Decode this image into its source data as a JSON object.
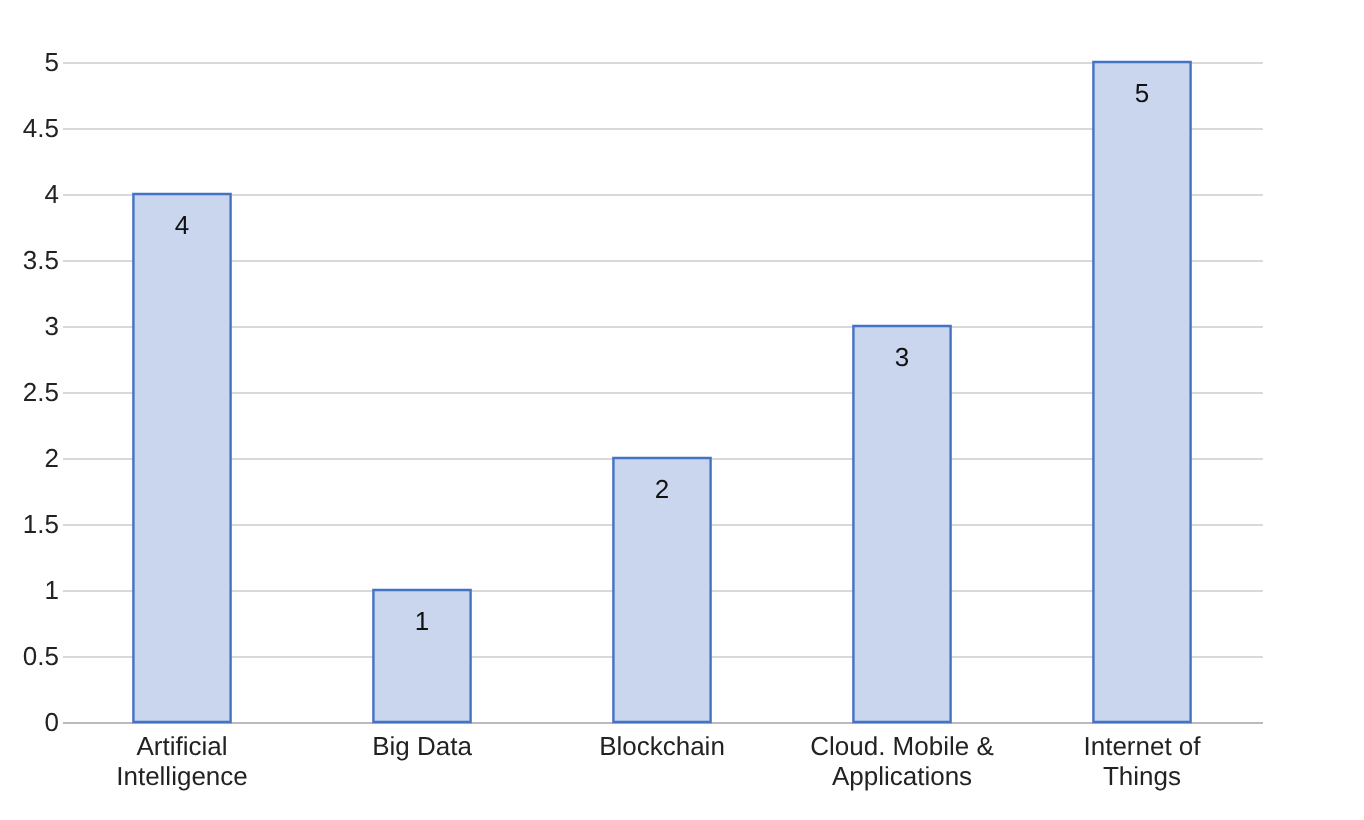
{
  "chart_data": {
    "type": "bar",
    "categories": [
      "Artificial Intelligence",
      "Big Data",
      "Blockchain",
      "Cloud. Mobile & Applications",
      "Internet of Things"
    ],
    "values": [
      4,
      1,
      2,
      3,
      5
    ],
    "color": "#c9d6ee",
    "ylim": [
      0,
      5
    ],
    "yticks": [
      0,
      0.5,
      1,
      1.5,
      2,
      2.5,
      3,
      3.5,
      4,
      4.5,
      5
    ],
    "grid": "y",
    "data_labels": true
  }
}
